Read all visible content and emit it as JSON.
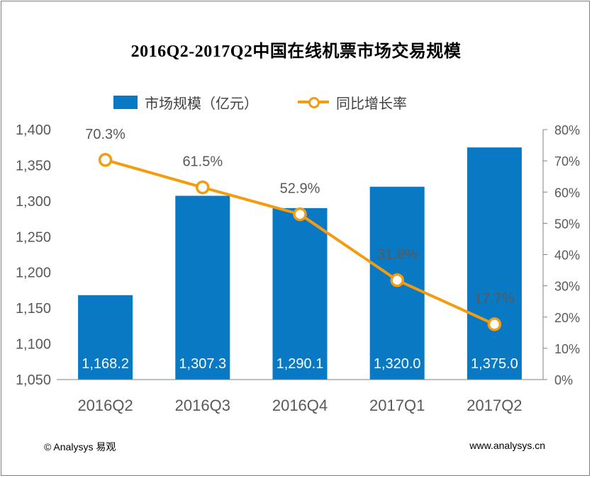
{
  "chart_data": {
    "type": "bar",
    "title": "2016Q2-2017Q2中国在线机票市场交易规模",
    "categories": [
      "2016Q2",
      "2016Q3",
      "2016Q4",
      "2017Q1",
      "2017Q2"
    ],
    "series": [
      {
        "name": "市场规模（亿元）",
        "type": "bar",
        "axis": "left",
        "values": [
          1168.2,
          1307.3,
          1290.1,
          1320.0,
          1375.0
        ],
        "labels": [
          "1,168.2",
          "1,307.3",
          "1,290.1",
          "1,320.0",
          "1,375.0"
        ]
      },
      {
        "name": "同比增长率",
        "type": "line",
        "axis": "right",
        "values": [
          70.3,
          61.5,
          52.9,
          31.8,
          17.7
        ],
        "labels": [
          "70.3%",
          "61.5%",
          "52.9%",
          "31.8%",
          "17.7%"
        ]
      }
    ],
    "y_left": {
      "ylim": [
        1050,
        1400
      ],
      "ticks": [
        "1,050",
        "1,100",
        "1,150",
        "1,200",
        "1,250",
        "1,300",
        "1,350",
        "1,400"
      ]
    },
    "y_right": {
      "ylim": [
        0,
        80
      ],
      "ticks": [
        "0%",
        "10%",
        "20%",
        "30%",
        "40%",
        "50%",
        "60%",
        "70%",
        "80%"
      ]
    },
    "legend_position": "top",
    "grid": false,
    "colors": {
      "bar": "#0a79c4",
      "line": "#f39c12",
      "marker_fill": "#ffffff",
      "axis": "#808080",
      "tick_text": "#595959"
    }
  },
  "footer": {
    "copyright": "© Analysys 易观",
    "website": "www.analysys.cn"
  }
}
